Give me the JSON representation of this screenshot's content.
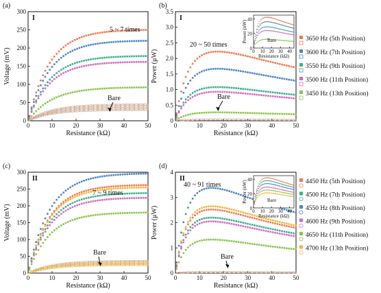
{
  "colors": {
    "s1": "#f07a50",
    "s2": "#4f86c6",
    "s3": "#3fae8c",
    "s4": "#d46bc4",
    "s5": "#8ac64d",
    "s6": "#f0b73a",
    "bare": "#caa890",
    "axis": "#111111"
  },
  "chart_data": [
    {
      "id": "a",
      "type": "scatter",
      "panel_label": "(a)",
      "roman": "I",
      "xlabel": "Resistance (kΩ)",
      "ylabel": "Voltage (mV)",
      "xlim": [
        0,
        50
      ],
      "ylim": [
        0,
        300
      ],
      "xticks": [
        "0",
        "10",
        "20",
        "30",
        "40",
        "50"
      ],
      "yticks": [
        "0",
        "50",
        "100",
        "150",
        "200",
        "250",
        "300"
      ],
      "annotation": "5 ~ 7 times",
      "bare_label": "Bare",
      "series": [
        {
          "color": "s1",
          "v_end": 250,
          "k": 9
        },
        {
          "color": "s2",
          "v_end": 220,
          "k": 9
        },
        {
          "color": "s3",
          "v_end": 178,
          "k": 9
        },
        {
          "color": "s4",
          "v_end": 162,
          "k": 9
        },
        {
          "color": "s5",
          "v_end": 92,
          "k": 10
        },
        {
          "color": "bare",
          "v_end": 45,
          "k": 10,
          "bare": true
        },
        {
          "color": "bare",
          "v_end": 40,
          "k": 10,
          "bare": true
        },
        {
          "color": "bare",
          "v_end": 35,
          "k": 10,
          "bare": true
        },
        {
          "color": "bare",
          "v_end": 30,
          "k": 10,
          "bare": true
        }
      ]
    },
    {
      "id": "b",
      "type": "scatter",
      "panel_label": "(b)",
      "roman": "I",
      "xlabel": "Resistance (kΩ)",
      "ylabel": "Power (μW)",
      "xlim": [
        0,
        50
      ],
      "ylim": [
        0,
        3.5
      ],
      "xticks": [
        "0",
        "10",
        "20",
        "30",
        "40",
        "50"
      ],
      "yticks": [
        "0",
        "0.5",
        "1.0",
        "1.5",
        "2.0",
        "2.5",
        "3.0",
        "3.5"
      ],
      "annotation": "20 ~ 50 times",
      "bare_label": "Bare",
      "series": [
        {
          "color": "s1",
          "peak": 2.22,
          "xpk": 17.5
        },
        {
          "color": "s2",
          "peak": 1.67,
          "xpk": 17.5
        },
        {
          "color": "s3",
          "peak": 1.08,
          "xpk": 17.5
        },
        {
          "color": "s4",
          "peak": 0.93,
          "xpk": 17.5
        },
        {
          "color": "s5",
          "peak": 0.27,
          "xpk": 17.5
        },
        {
          "color": "bare",
          "peak": 0.04,
          "xpk": 17.5,
          "bare": true
        }
      ],
      "legend": [
        {
          "color": "s1",
          "label": "3650 Hz (5th Position)"
        },
        {
          "color": "s2",
          "label": "3600 Hz (7th Position)"
        },
        {
          "color": "s3",
          "label": "3550 Hz (9th Position)"
        },
        {
          "color": "s4",
          "label": "3500 Hz (11th Position)"
        },
        {
          "color": "s5",
          "label": "3450 Hz (13th Position)"
        }
      ],
      "inset": {
        "xlabel": "Resistance (kΩ)",
        "ylabel": "Power (nW)",
        "bare_label": "Bare",
        "xlim": [
          0,
          45
        ],
        "ylim": [
          0,
          45
        ],
        "xticks": [
          "0",
          "10",
          "20",
          "30",
          "40"
        ],
        "yticks": [
          "0",
          "20",
          "40"
        ],
        "series": [
          {
            "color": "s1",
            "peak": 42,
            "xpk": 15
          },
          {
            "color": "s2",
            "peak": 36,
            "xpk": 15
          },
          {
            "color": "s3",
            "peak": 29,
            "xpk": 15
          },
          {
            "color": "s4",
            "peak": 24,
            "xpk": 15
          },
          {
            "color": "s5",
            "peak": 12,
            "xpk": 15
          }
        ]
      }
    },
    {
      "id": "c",
      "type": "scatter",
      "panel_label": "(c)",
      "roman": "II",
      "xlabel": "Resistance (kΩ)",
      "ylabel": "Voltage (mV)",
      "xlim": [
        0,
        50
      ],
      "ylim": [
        0,
        300
      ],
      "xticks": [
        "0",
        "10",
        "20",
        "30",
        "40",
        "50"
      ],
      "yticks": [
        "0",
        "50",
        "100",
        "150",
        "200",
        "250",
        "300"
      ],
      "annotation": "7 ~ 9 times",
      "bare_label": "Bare",
      "series": [
        {
          "color": "s2",
          "v_end": 296,
          "k": 9
        },
        {
          "color": "s1",
          "v_end": 262,
          "k": 9
        },
        {
          "color": "s6",
          "v_end": 255,
          "k": 9
        },
        {
          "color": "s3",
          "v_end": 238,
          "k": 9
        },
        {
          "color": "s4",
          "v_end": 224,
          "k": 9
        },
        {
          "color": "s5",
          "v_end": 180,
          "k": 9
        },
        {
          "color": "bare",
          "v_end": 36,
          "k": 10,
          "bare": true
        },
        {
          "color": "s6",
          "v_end": 32,
          "k": 10,
          "bare": true
        },
        {
          "color": "bare",
          "v_end": 28,
          "k": 10,
          "bare": true
        },
        {
          "color": "s6",
          "v_end": 24,
          "k": 10,
          "bare": true
        }
      ]
    },
    {
      "id": "d",
      "type": "scatter",
      "panel_label": "(d)",
      "roman": "II",
      "xlabel": "Resistance (kΩ)",
      "ylabel": "Power (μW)",
      "xlim": [
        0,
        50
      ],
      "ylim": [
        0,
        4
      ],
      "xticks": [
        "0",
        "10",
        "20",
        "30",
        "40",
        "50"
      ],
      "yticks": [
        "0",
        "1",
        "2",
        "3",
        "4"
      ],
      "annotation": "40 ~ 91 times",
      "bare_label": "Bare",
      "series": [
        {
          "color": "s2",
          "peak": 3.38,
          "xpk": 15
        },
        {
          "color": "s6",
          "peak": 2.65,
          "xpk": 15
        },
        {
          "color": "s1",
          "peak": 2.52,
          "xpk": 15
        },
        {
          "color": "s3",
          "peak": 2.2,
          "xpk": 15
        },
        {
          "color": "s4",
          "peak": 2.05,
          "xpk": 15
        },
        {
          "color": "s5",
          "peak": 1.33,
          "xpk": 15
        },
        {
          "color": "bare",
          "peak": 0.04,
          "xpk": 15,
          "bare": true
        }
      ],
      "legend": [
        {
          "color": "s1",
          "label": "4450 Hz (5th Position)"
        },
        {
          "color": "s3",
          "label": "4500 Hz (7th Position)"
        },
        {
          "color": "s2",
          "label": "4550 Hz (8th Position)"
        },
        {
          "color": "s4",
          "label": "4600 Hz (9th Position)"
        },
        {
          "color": "s5",
          "label": "4650 Hz (11th Position)"
        },
        {
          "color": "s6",
          "label": "4700 Hz (13th Position)"
        }
      ],
      "inset": {
        "xlabel": "Resistance (kΩ)",
        "ylabel": "Power (nW)",
        "bare_label": "Bare",
        "xlim": [
          0,
          45
        ],
        "ylim": [
          0,
          45
        ],
        "xticks": [
          "0",
          "10",
          "20",
          "30",
          "40"
        ],
        "yticks": [
          "0",
          "20",
          "40"
        ],
        "series": [
          {
            "color": "s1",
            "peak": 42,
            "xpk": 15
          },
          {
            "color": "s3",
            "peak": 38,
            "xpk": 15
          },
          {
            "color": "s2",
            "peak": 34,
            "xpk": 15
          },
          {
            "color": "s4",
            "peak": 29,
            "xpk": 15
          },
          {
            "color": "s5",
            "peak": 25,
            "xpk": 15
          },
          {
            "color": "s6",
            "peak": 21,
            "xpk": 15
          }
        ]
      }
    }
  ]
}
